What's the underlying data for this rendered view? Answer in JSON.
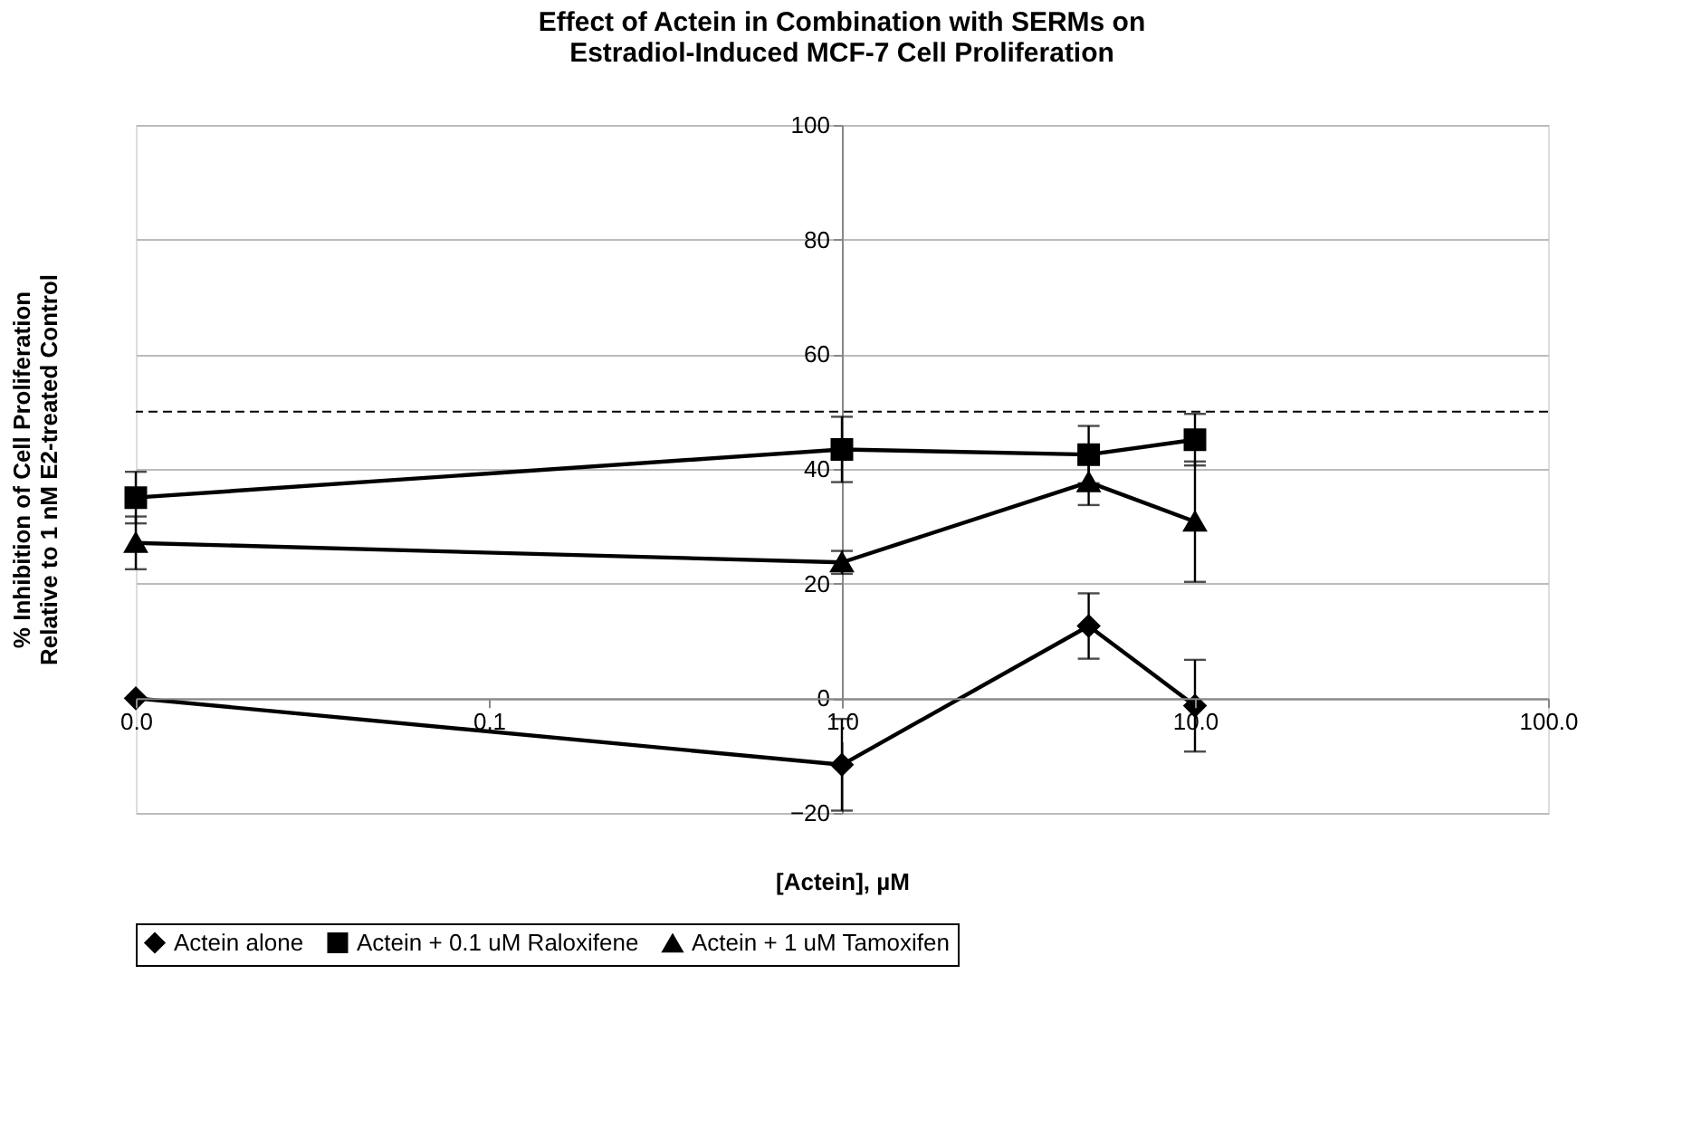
{
  "chart_data": {
    "type": "line",
    "title": "Effect of Actein in Combination with SERMs on\nEstradiol-Induced MCF-7 Cell Proliferation",
    "xlabel": "[Actein], µM",
    "ylabel": "% Inhibition of Cell Proliferation\nRelative to 1 nM E2-treated Control",
    "log": "x",
    "x": [
      0.01,
      1,
      5,
      10
    ],
    "xlim": [
      0.01,
      100
    ],
    "xticks": [
      {
        "value": 0.01,
        "label": "0.0"
      },
      {
        "value": 0.1,
        "label": "0.1"
      },
      {
        "value": 1,
        "label": "1.0"
      },
      {
        "value": 10,
        "label": "10.0"
      },
      {
        "value": 100,
        "label": "100.0"
      }
    ],
    "ylim": [
      -20,
      100
    ],
    "yticks": [
      -20,
      0,
      20,
      40,
      60,
      80,
      100
    ],
    "grid": "y",
    "legend": "bottom",
    "line_style": "solid",
    "ref_lines": [
      {
        "axis": "y",
        "value": 50,
        "line_style": "dashed",
        "color": "#000000"
      }
    ],
    "series": [
      {
        "name": "Actein alone",
        "color": "#000000",
        "marker": "diamond",
        "values": [
          0,
          -11.6,
          12.6,
          -1.3
        ],
        "errors": [
          null,
          8,
          5.7,
          8
        ]
      },
      {
        "name": "Actein + 0.1 uM Raloxifene",
        "color": "#000000",
        "marker": "square",
        "values": [
          35,
          43.4,
          42.5,
          45.1
        ],
        "errors": [
          4.5,
          5.7,
          5,
          4.5
        ]
      },
      {
        "name": "Actein + 1 uM Tamoxifen",
        "color": "#000000",
        "marker": "triangle",
        "values": [
          27.1,
          23.7,
          37.7,
          30.8
        ],
        "errors": [
          4.6,
          2,
          4,
          10.5
        ]
      }
    ]
  }
}
